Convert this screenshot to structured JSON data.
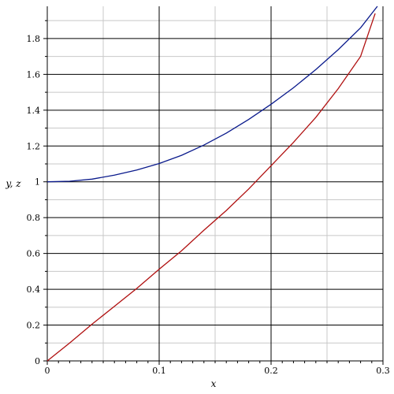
{
  "chart_data": {
    "type": "line",
    "title": "",
    "xlabel": "x",
    "ylabel": "y, z",
    "xlim": [
      0,
      0.3
    ],
    "ylim": [
      0,
      1.98
    ],
    "grid": true,
    "x_ticks": [
      0,
      0.1,
      0.2,
      0.3
    ],
    "x_tick_labels": [
      "0",
      "0.1",
      "0.2",
      "0.3"
    ],
    "y_ticks": [
      0,
      0.2,
      0.4,
      0.6,
      0.8,
      1,
      1.2,
      1.4,
      1.6,
      1.8
    ],
    "y_tick_labels": [
      "0",
      "0.2",
      "0.4",
      "0.6",
      "0.8",
      "1",
      "1.2",
      "1.4",
      "1.6",
      "1.8"
    ],
    "series": [
      {
        "color": "#0a1a8c",
        "x": [
          0,
          0.02,
          0.04,
          0.06,
          0.08,
          0.1,
          0.12,
          0.14,
          0.16,
          0.18,
          0.2,
          0.22,
          0.24,
          0.26,
          0.28,
          0.295
        ],
        "y": [
          1.0,
          1.003,
          1.015,
          1.037,
          1.066,
          1.102,
          1.148,
          1.205,
          1.272,
          1.348,
          1.433,
          1.525,
          1.627,
          1.738,
          1.86,
          1.98
        ]
      },
      {
        "color": "#b01010",
        "x": [
          0,
          0.02,
          0.04,
          0.06,
          0.08,
          0.1,
          0.12,
          0.14,
          0.16,
          0.18,
          0.2,
          0.22,
          0.24,
          0.26,
          0.28,
          0.293
        ],
        "y": [
          0.0,
          0.1,
          0.205,
          0.305,
          0.405,
          0.512,
          0.615,
          0.73,
          0.84,
          0.96,
          1.09,
          1.22,
          1.36,
          1.52,
          1.7,
          1.94
        ]
      }
    ],
    "colors": {
      "major_grid": "#000000",
      "minor_grid": "#c8c8c8"
    }
  }
}
